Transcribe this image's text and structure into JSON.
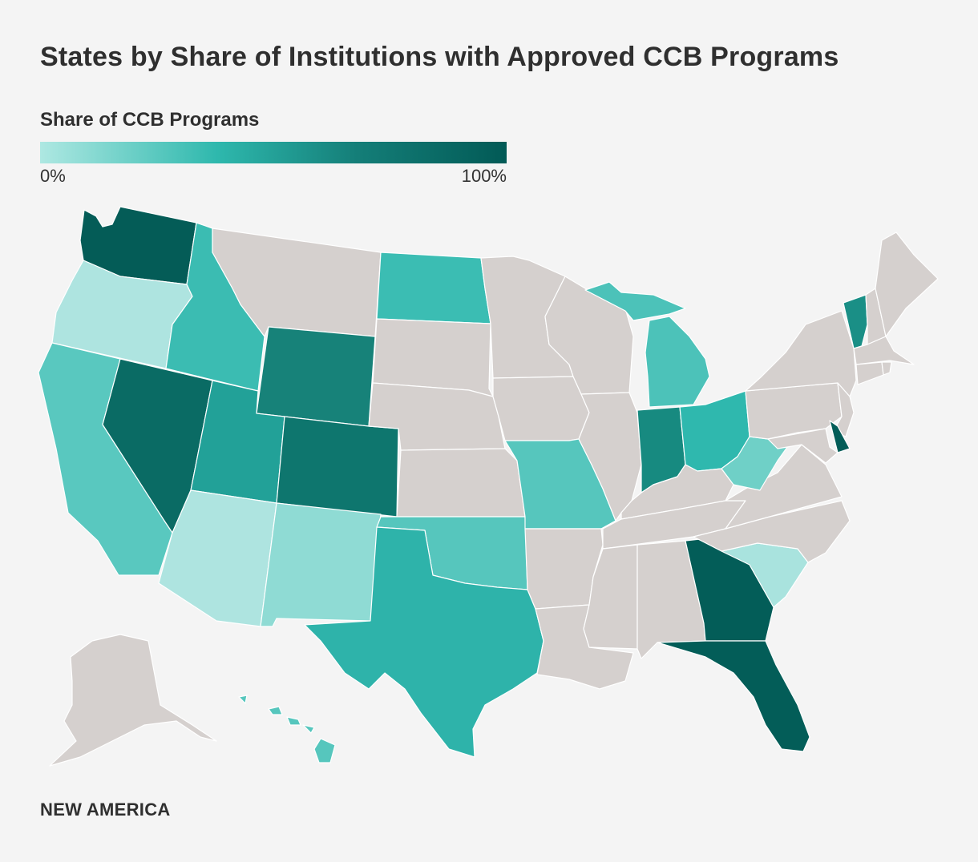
{
  "title": "States by Share of Institutions with Approved CCB Programs",
  "legend": {
    "title": "Share of CCB Programs",
    "min_label": "0%",
    "max_label": "100%",
    "colors": [
      "#aee8e2",
      "#2eb8ad",
      "#147e78",
      "#025a56"
    ]
  },
  "no_data_color": "#d5d0ce",
  "footer": "NEW AMERICA",
  "states": [
    {
      "name": "Washington",
      "color": "#045c57"
    },
    {
      "name": "Oregon",
      "color": "#aee4e0"
    },
    {
      "name": "California",
      "color": "#59c8bf"
    },
    {
      "name": "Nevada",
      "color": "#0a6b64"
    },
    {
      "name": "Idaho",
      "color": "#3bbcb2"
    },
    {
      "name": "Montana",
      "color": "#d5d0ce"
    },
    {
      "name": "Wyoming",
      "color": "#178279"
    },
    {
      "name": "Utah",
      "color": "#22a198"
    },
    {
      "name": "Arizona",
      "color": "#aee4e0"
    },
    {
      "name": "Colorado",
      "color": "#0e766e"
    },
    {
      "name": "New Mexico",
      "color": "#8fdbd4"
    },
    {
      "name": "North Dakota",
      "color": "#3bbdb3"
    },
    {
      "name": "South Dakota",
      "color": "#d5d0ce"
    },
    {
      "name": "Nebraska",
      "color": "#d5d0ce"
    },
    {
      "name": "Kansas",
      "color": "#d5d0ce"
    },
    {
      "name": "Oklahoma",
      "color": "#56c6bd"
    },
    {
      "name": "Texas",
      "color": "#2eb3aa"
    },
    {
      "name": "Minnesota",
      "color": "#d5d0ce"
    },
    {
      "name": "Iowa",
      "color": "#d5d0ce"
    },
    {
      "name": "Missouri",
      "color": "#56c6bd"
    },
    {
      "name": "Arkansas",
      "color": "#d5d0ce"
    },
    {
      "name": "Louisiana",
      "color": "#d5d0ce"
    },
    {
      "name": "Wisconsin",
      "color": "#d5d0ce"
    },
    {
      "name": "Illinois",
      "color": "#d5d0ce"
    },
    {
      "name": "Michigan",
      "color": "#4cc2b9"
    },
    {
      "name": "Indiana",
      "color": "#178a80"
    },
    {
      "name": "Ohio",
      "color": "#2fb8ae"
    },
    {
      "name": "Kentucky",
      "color": "#d5d0ce"
    },
    {
      "name": "Tennessee",
      "color": "#d5d0ce"
    },
    {
      "name": "Mississippi",
      "color": "#d5d0ce"
    },
    {
      "name": "Alabama",
      "color": "#d5d0ce"
    },
    {
      "name": "Georgia",
      "color": "#035d58"
    },
    {
      "name": "Florida",
      "color": "#035d58"
    },
    {
      "name": "South Carolina",
      "color": "#a9e3de"
    },
    {
      "name": "North Carolina",
      "color": "#d5d0ce"
    },
    {
      "name": "Virginia",
      "color": "#d5d0ce"
    },
    {
      "name": "West Virginia",
      "color": "#6fd0c7"
    },
    {
      "name": "Pennsylvania",
      "color": "#d5d0ce"
    },
    {
      "name": "New York",
      "color": "#d5d0ce"
    },
    {
      "name": "Vermont",
      "color": "#1a8f86"
    },
    {
      "name": "New Hampshire",
      "color": "#d5d0ce"
    },
    {
      "name": "Maine",
      "color": "#d5d0ce"
    },
    {
      "name": "Massachusetts",
      "color": "#d5d0ce"
    },
    {
      "name": "Connecticut",
      "color": "#d5d0ce"
    },
    {
      "name": "Rhode Island",
      "color": "#d5d0ce"
    },
    {
      "name": "New Jersey",
      "color": "#d5d0ce"
    },
    {
      "name": "Delaware",
      "color": "#035d58"
    },
    {
      "name": "Maryland",
      "color": "#d5d0ce"
    },
    {
      "name": "Alaska",
      "color": "#d5d0ce"
    },
    {
      "name": "Hawaii",
      "color": "#56c6bd"
    }
  ]
}
